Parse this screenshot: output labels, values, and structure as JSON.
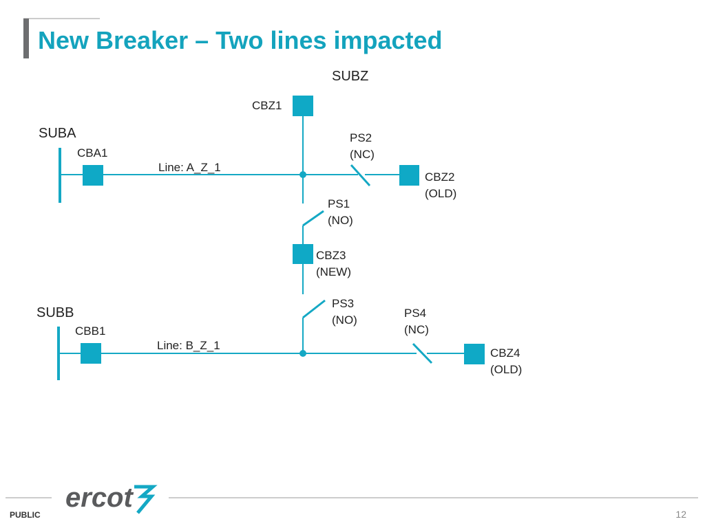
{
  "header": {
    "title": "New Breaker – Two lines impacted"
  },
  "nodes": [
    {
      "id": "subz",
      "label": [
        "SUBZ"
      ]
    },
    {
      "id": "cbz1",
      "label": [
        "CBZ1"
      ]
    },
    {
      "id": "suba",
      "label": [
        "SUBA"
      ]
    },
    {
      "id": "cba1",
      "label": [
        "CBA1"
      ]
    },
    {
      "id": "line-a",
      "label": [
        "Line: A_Z_1"
      ]
    },
    {
      "id": "ps2",
      "label": [
        "PS2",
        "(NC)"
      ]
    },
    {
      "id": "cbz2",
      "label": [
        "CBZ2",
        "(OLD)"
      ]
    },
    {
      "id": "ps1",
      "label": [
        "PS1",
        "(NO)"
      ]
    },
    {
      "id": "cbz3",
      "label": [
        "CBZ3",
        "(NEW)"
      ]
    },
    {
      "id": "ps3",
      "label": [
        "PS3",
        "(NO)"
      ]
    },
    {
      "id": "subb",
      "label": [
        "SUBB"
      ]
    },
    {
      "id": "cbb1",
      "label": [
        "CBB1"
      ]
    },
    {
      "id": "line-b",
      "label": [
        "Line: B_Z_1"
      ]
    },
    {
      "id": "ps4",
      "label": [
        "PS4",
        "(NC)"
      ]
    },
    {
      "id": "cbz4",
      "label": [
        "CBZ4",
        "(OLD)"
      ]
    }
  ],
  "footer": {
    "logo": "ercot",
    "classification": "PUBLIC",
    "page": "12"
  }
}
